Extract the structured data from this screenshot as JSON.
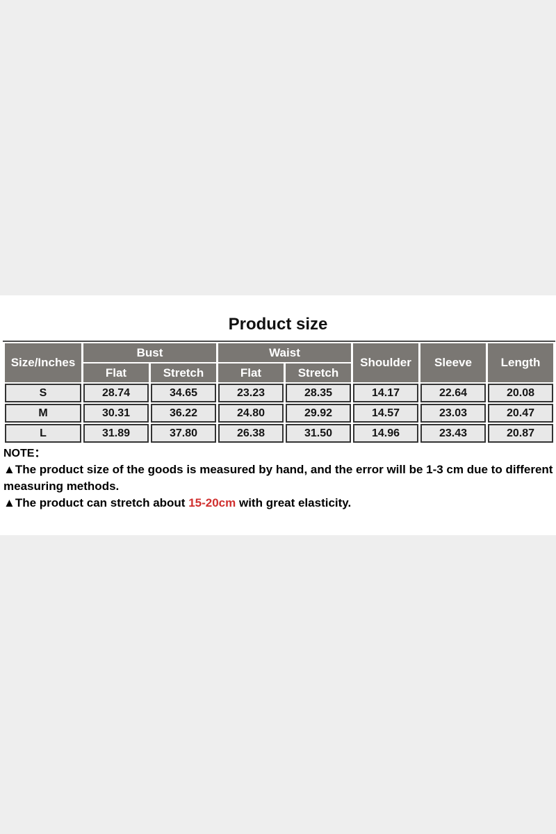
{
  "page": {
    "band_background": "#eeeeee",
    "content_background": "#ffffff"
  },
  "title": "Product size",
  "chart_data": {
    "type": "table",
    "title": "Product size",
    "unit_header": "Size/Inches",
    "column_groups": [
      {
        "label": "Bust",
        "children": [
          "Flat",
          "Stretch"
        ]
      },
      {
        "label": "Waist",
        "children": [
          "Flat",
          "Stretch"
        ]
      }
    ],
    "single_columns": [
      "Shoulder",
      "Sleeve",
      "Length"
    ],
    "columns_flat": [
      "Size/Inches",
      "Bust Flat",
      "Bust Stretch",
      "Waist Flat",
      "Waist Stretch",
      "Shoulder",
      "Sleeve",
      "Length"
    ],
    "rows": [
      {
        "size": "S",
        "values": [
          "28.74",
          "34.65",
          "23.23",
          "28.35",
          "14.17",
          "22.64",
          "20.08"
        ]
      },
      {
        "size": "M",
        "values": [
          "30.31",
          "36.22",
          "24.80",
          "29.92",
          "14.57",
          "23.03",
          "20.47"
        ]
      },
      {
        "size": "L",
        "values": [
          "31.89",
          "37.80",
          "26.38",
          "31.50",
          "14.96",
          "23.43",
          "20.87"
        ]
      }
    ],
    "colors": {
      "header_background": "#7a7773",
      "header_text": "#ffffff",
      "cell_background": "#e8e8e8",
      "cell_border": "#333333"
    }
  },
  "note": {
    "heading": "NOTE：",
    "bullet1_line1": "▲The product size of the goods is measured by hand, and the error will be 1-3 cm due to different",
    "bullet1_line2": "measuring methods.",
    "bullet2_prefix": "▲The product can stretch about ",
    "bullet2_highlight": "15-20cm",
    "bullet2_suffix": " with great elasticity.",
    "highlight_color": "#d0302f"
  }
}
